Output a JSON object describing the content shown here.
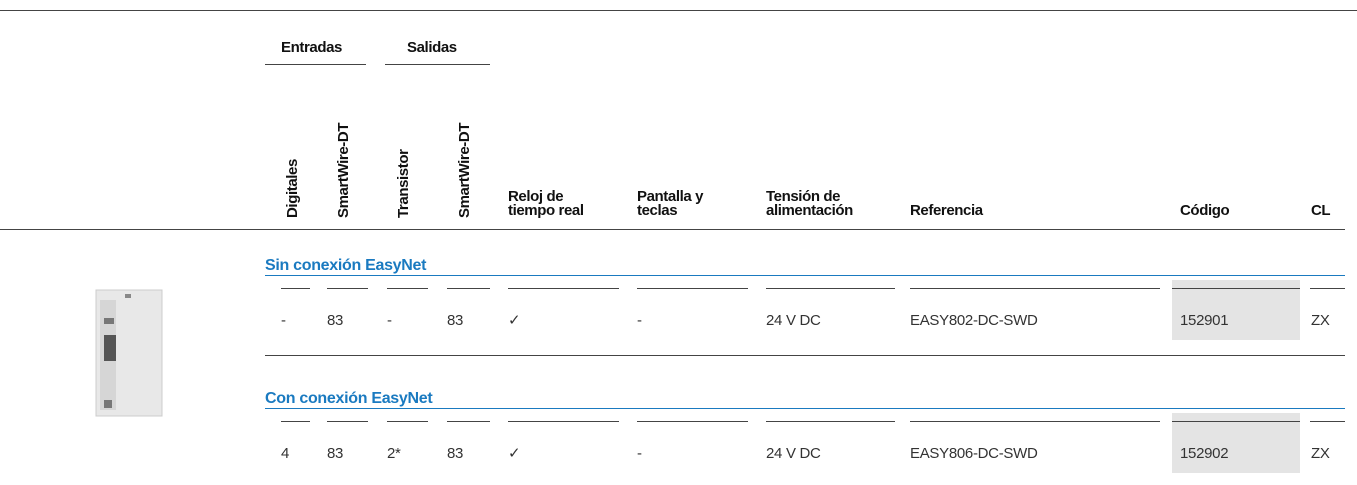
{
  "header": {
    "groups": [
      "Entradas",
      "Salidas"
    ],
    "rotated": [
      "Digitales",
      "SmartWire-DT",
      "Transistor",
      "SmartWire-DT"
    ],
    "columns": [
      [
        "Reloj de",
        "tiempo real"
      ],
      [
        "Pantalla y",
        "teclas"
      ],
      [
        "Tensión de",
        "alimentación"
      ],
      [
        "Referencia"
      ],
      [
        "Código"
      ],
      [
        "CL"
      ]
    ]
  },
  "sections": [
    {
      "title": "Sin conexión EasyNet",
      "rows": [
        [
          "-",
          "83",
          "-",
          "83",
          "✓",
          "-",
          "24 V DC",
          "EASY802-DC-SWD",
          "152901",
          "ZX"
        ]
      ]
    },
    {
      "title": "Con conexión EasyNet",
      "rows": [
        [
          "4",
          "83",
          "2*",
          "83",
          "✓",
          "-",
          "24 V DC",
          "EASY806-DC-SWD",
          "152902",
          "ZX"
        ]
      ]
    }
  ]
}
